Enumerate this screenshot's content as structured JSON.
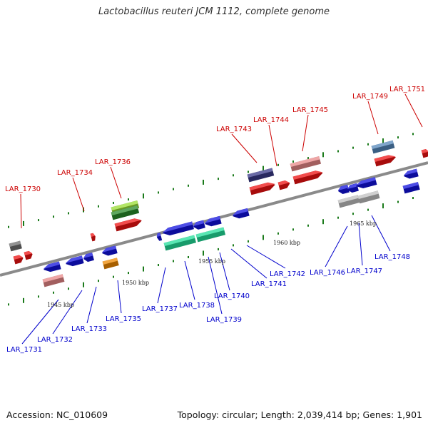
{
  "title": "Lactobacillus reuteri JCM 1112, complete genome",
  "footer": {
    "accession": "Accession: NC_010609",
    "topology": "Topology: circular; Length: 2,039,414 bp; Genes: 1,901"
  },
  "colors": {
    "upper_label": "#cc0000",
    "lower_label": "#0000cc",
    "backbone": "#8a8a8a",
    "tick": "#1a7a1a"
  },
  "scale_labels": [
    "1945 kbp",
    "1950 kbp",
    "1955 kbp",
    "1960 kbp",
    "1965 kbp"
  ],
  "genes_upper": [
    "LAR_1730",
    "LAR_1734",
    "LAR_1736",
    "LAR_1743",
    "LAR_1744",
    "LAR_1745",
    "LAR_1749",
    "LAR_1751"
  ],
  "genes_lower": [
    "LAR_1731",
    "LAR_1732",
    "LAR_1733",
    "LAR_1735",
    "LAR_1737",
    "LAR_1738",
    "LAR_1739",
    "LAR_1740",
    "LAR_1741",
    "LAR_1742",
    "LAR_1746",
    "LAR_1747",
    "LAR_1748"
  ]
}
